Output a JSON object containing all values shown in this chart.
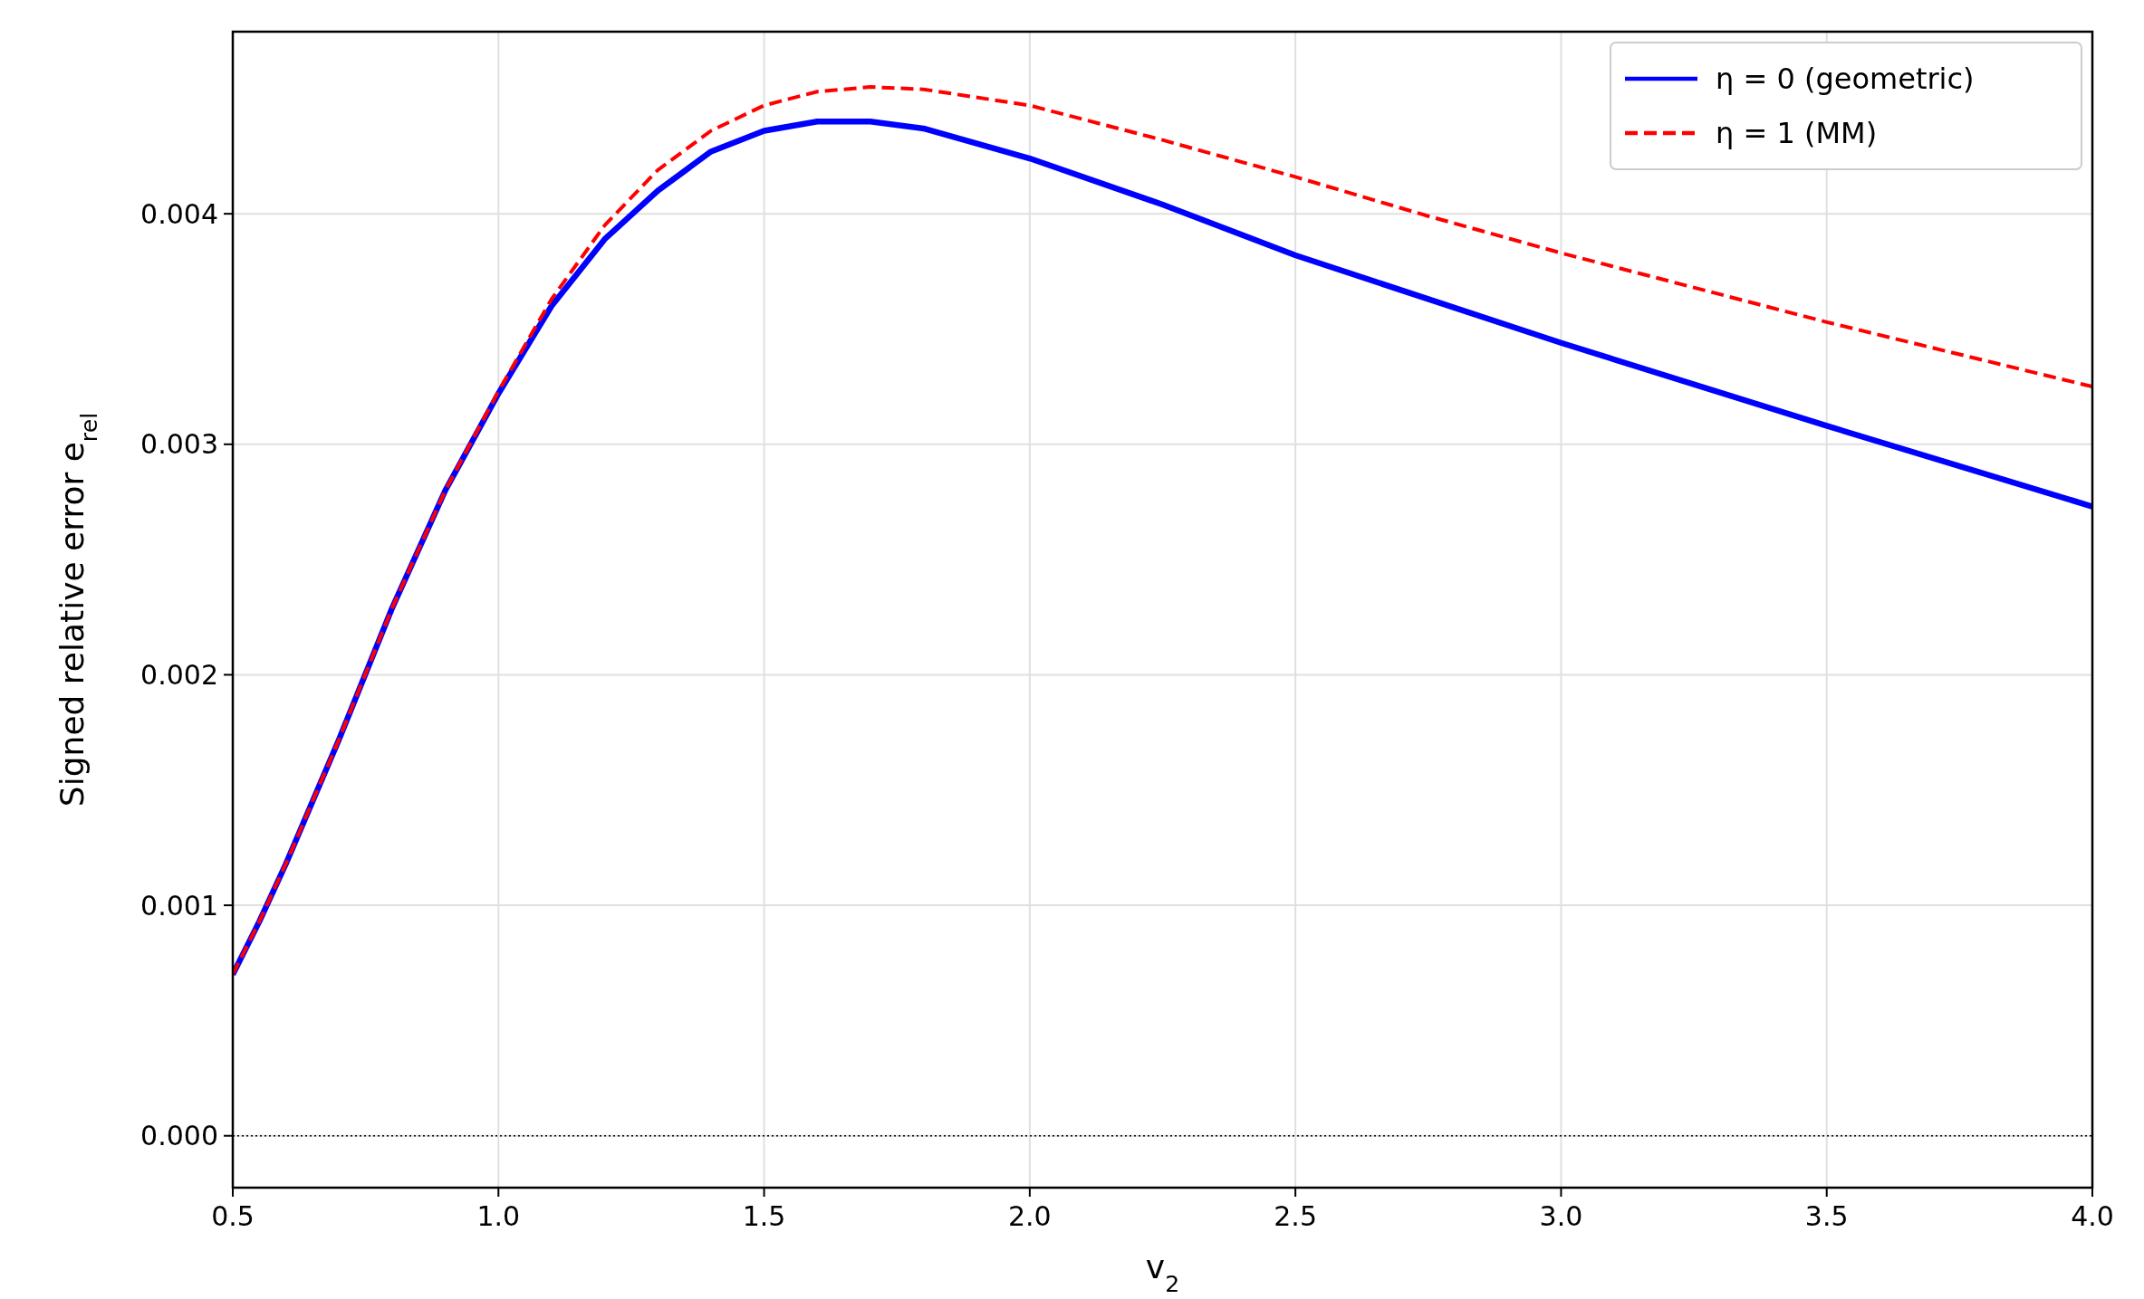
{
  "chart_data": {
    "type": "line",
    "xlabel": "v$_{2}$",
    "ylabel": "Signed relative error e$_{rel}$",
    "x": [
      0.5,
      0.55,
      0.6,
      0.7,
      0.8,
      0.9,
      1.0,
      1.1,
      1.2,
      1.3,
      1.4,
      1.5,
      1.6,
      1.7,
      1.8,
      2.0,
      2.25,
      2.5,
      2.75,
      3.0,
      3.5,
      4.0
    ],
    "series": [
      {
        "name": "η = 0 (geometric)",
        "color": "#0000ff",
        "line_style": "solid",
        "values": [
          0.0007,
          0.00093,
          0.00118,
          0.00172,
          0.00229,
          0.0028,
          0.00322,
          0.0036,
          0.00389,
          0.0041,
          0.00427,
          0.00436,
          0.0044,
          0.0044,
          0.00437,
          0.00424,
          0.00404,
          0.00382,
          0.00363,
          0.00344,
          0.00308,
          0.00273
        ]
      },
      {
        "name": "η = 1 (MM)",
        "color": "#ff0000",
        "line_style": "dashed",
        "values": [
          0.0007,
          0.00093,
          0.00118,
          0.00172,
          0.00229,
          0.0028,
          0.00323,
          0.00363,
          0.00395,
          0.00419,
          0.00436,
          0.00447,
          0.00453,
          0.00455,
          0.00454,
          0.00447,
          0.00432,
          0.00416,
          0.00399,
          0.00383,
          0.00353,
          0.00325
        ]
      }
    ],
    "xlim": [
      0.5,
      4.0
    ],
    "xticks": [
      {
        "value": 0.5,
        "label": "0.5"
      },
      {
        "value": 1,
        "label": "1.0"
      },
      {
        "value": 1.5,
        "label": "1.5"
      },
      {
        "value": 2,
        "label": "2.0"
      },
      {
        "value": 2.5,
        "label": "2.5"
      },
      {
        "value": 3,
        "label": "3.0"
      },
      {
        "value": 3.5,
        "label": "3.5"
      },
      {
        "value": 4,
        "label": "4.0"
      }
    ],
    "ylim": [
      -0.000225,
      0.00479
    ],
    "yticks": [
      {
        "value": 0,
        "label": "0.000"
      },
      {
        "value": 0.001,
        "label": "0.001"
      },
      {
        "value": 0.002,
        "label": "0.002"
      },
      {
        "value": 0.003,
        "label": "0.003"
      },
      {
        "value": 0.004,
        "label": "0.004"
      }
    ],
    "grid": true,
    "legend": "top right",
    "ref_lines": [
      {
        "axis": "y",
        "value": 0,
        "color": "#000000",
        "line_style": "dotted"
      }
    ]
  }
}
